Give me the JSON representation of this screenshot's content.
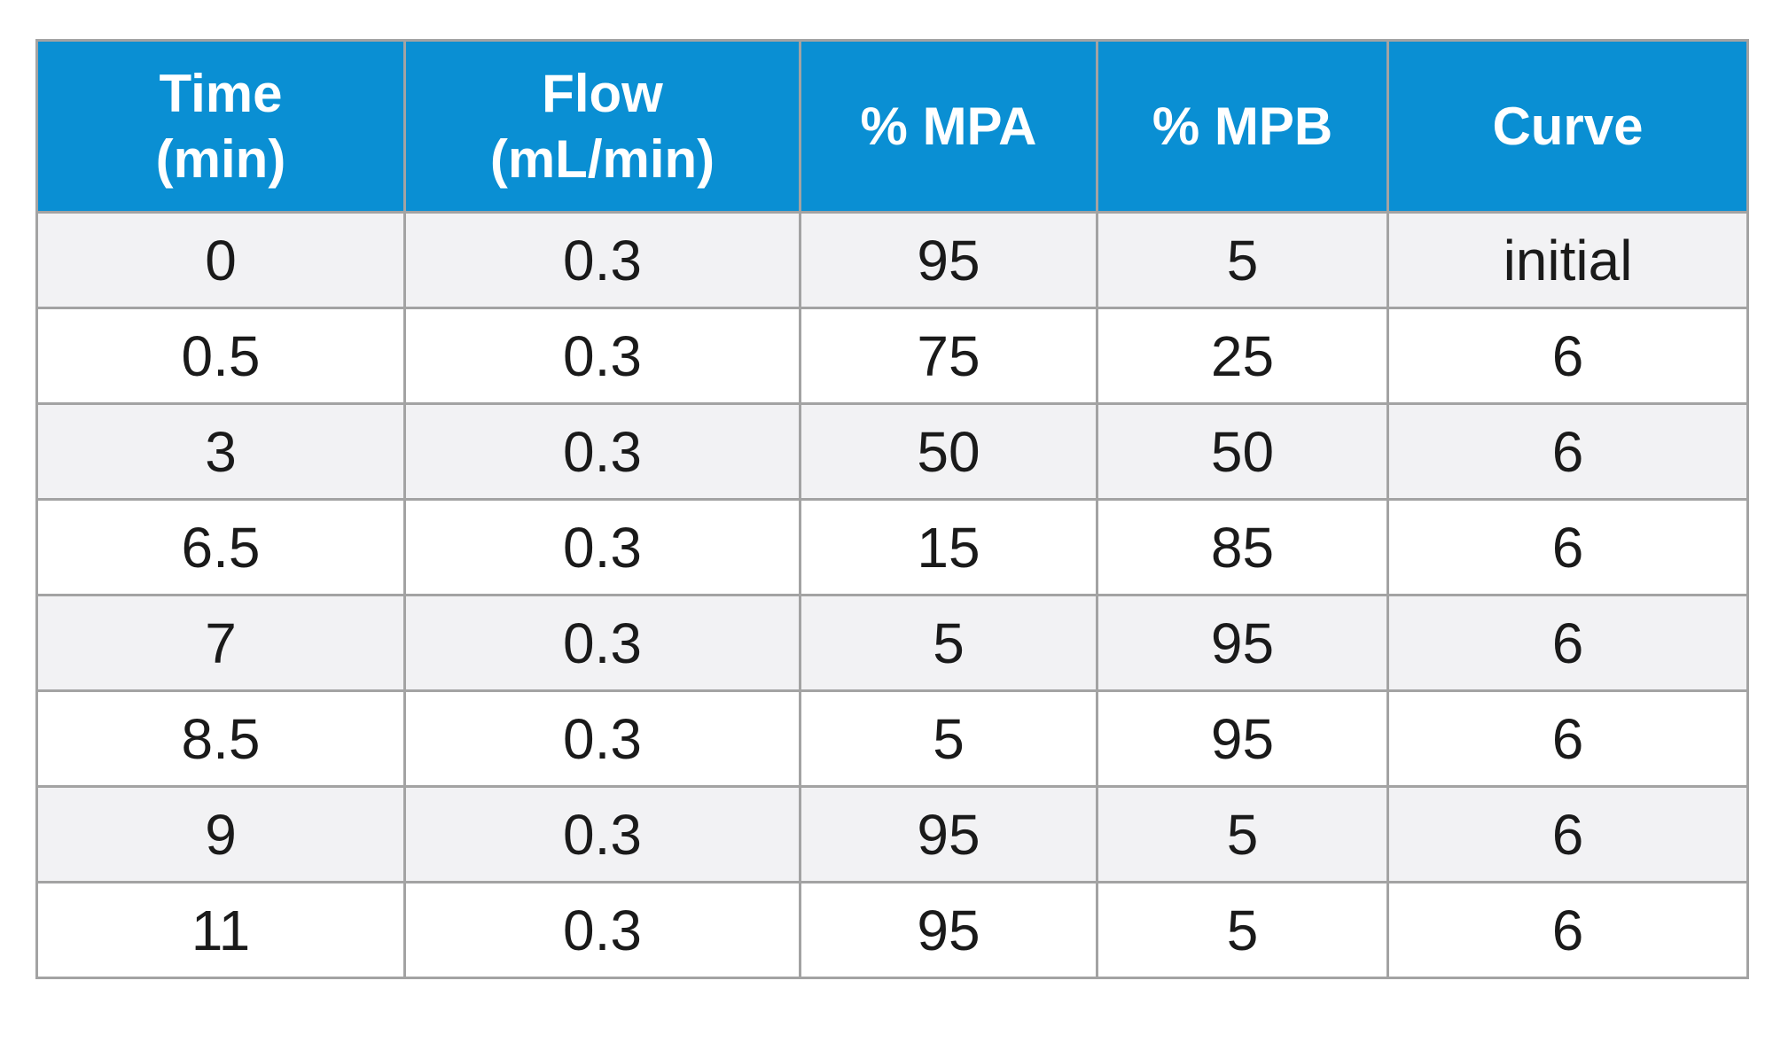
{
  "table": {
    "headers": [
      {
        "lines": [
          "Time",
          "(min)"
        ]
      },
      {
        "lines": [
          "Flow",
          "(mL/min)"
        ]
      },
      {
        "lines": [
          "% MPA"
        ]
      },
      {
        "lines": [
          "% MPB"
        ]
      },
      {
        "lines": [
          "Curve"
        ]
      }
    ],
    "rows": [
      [
        "0",
        "0.3",
        "95",
        "5",
        "initial"
      ],
      [
        "0.5",
        "0.3",
        "75",
        "25",
        "6"
      ],
      [
        "3",
        "0.3",
        "50",
        "50",
        "6"
      ],
      [
        "6.5",
        "0.3",
        "15",
        "85",
        "6"
      ],
      [
        "7",
        "0.3",
        "5",
        "95",
        "6"
      ],
      [
        "8.5",
        "0.3",
        "5",
        "95",
        "6"
      ],
      [
        "9",
        "0.3",
        "95",
        "5",
        "6"
      ],
      [
        "11",
        "0.3",
        "95",
        "5",
        "6"
      ]
    ]
  },
  "colors": {
    "header_bg": "#0a8fd3",
    "header_text": "#ffffff",
    "row_odd_bg": "#f2f2f4",
    "row_even_bg": "#ffffff",
    "border": "#a3a3a3"
  }
}
